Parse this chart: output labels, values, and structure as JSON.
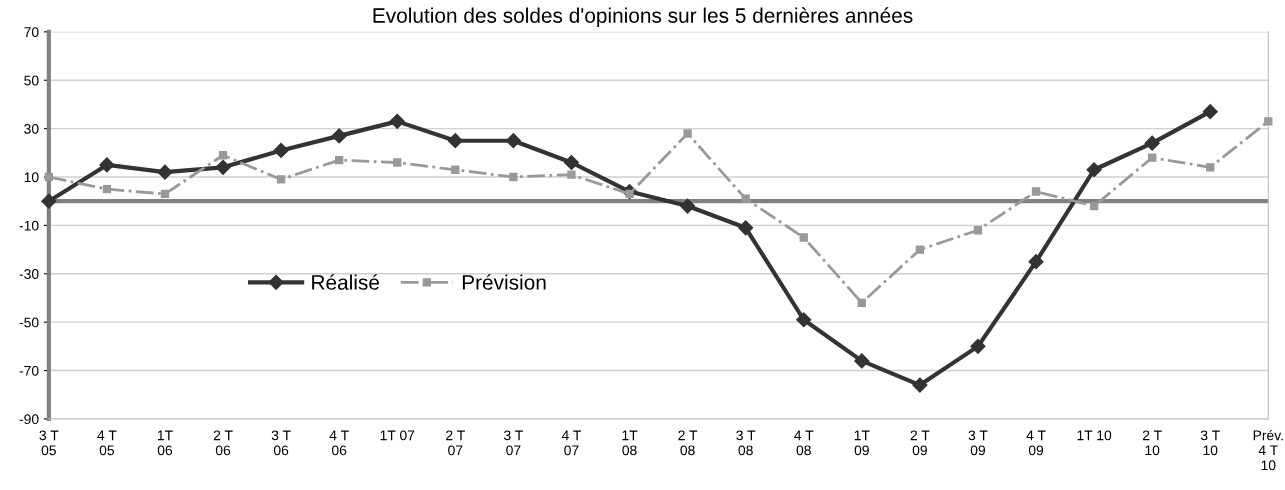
{
  "chart_data": {
    "type": "line",
    "title": "Evolution des soldes d'opinions sur les 5 dernières années",
    "categories": [
      "3 T\n05",
      "4 T\n05",
      "1T\n06",
      "2 T\n06",
      "3 T\n06",
      "4 T\n06",
      "1T 07",
      "2 T\n07",
      "3 T\n07",
      "4 T\n07",
      "1T\n08",
      "2 T\n08",
      "3 T\n08",
      "4 T\n08",
      "1T\n09",
      "2 T\n09",
      "3 T\n09",
      "4 T\n09",
      "1T 10",
      "2 T\n10",
      "3 T\n10",
      "Prév.\n4 T\n10"
    ],
    "series": [
      {
        "name": "Réalisé",
        "color": "#333333",
        "marker": "diamond",
        "line_style": "solid",
        "values": [
          0,
          15,
          12,
          14,
          21,
          27,
          33,
          25,
          25,
          16,
          4,
          -2,
          -11,
          -49,
          -66,
          -76,
          -60,
          -25,
          13,
          24,
          37,
          null
        ]
      },
      {
        "name": "Prévision",
        "color": "#999999",
        "marker": "square",
        "line_style": "dashdot",
        "values": [
          10,
          5,
          3,
          19,
          9,
          17,
          16,
          13,
          10,
          11,
          3,
          28,
          1,
          -15,
          -42,
          -20,
          -12,
          4,
          -2,
          18,
          14,
          33
        ]
      }
    ],
    "ylim": [
      -90,
      70
    ],
    "yticks": [
      -90,
      -70,
      -50,
      -30,
      -10,
      10,
      30,
      50,
      70
    ],
    "ref_lines": [
      {
        "axis": "y",
        "value": 0,
        "color": "#808080"
      }
    ],
    "grid": "y",
    "legend": "center left"
  }
}
